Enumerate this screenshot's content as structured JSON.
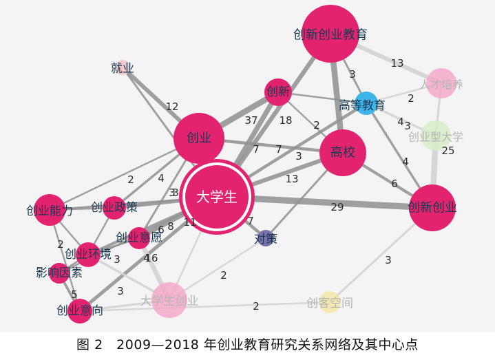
{
  "caption": "图 2　2009—2018 年创业教育研究关系网络及其中心点",
  "nodes": [
    {
      "id": "n0",
      "label": "大学生",
      "color": "#e4236f",
      "emphasis": "center"
    },
    {
      "id": "n1",
      "label": "创新创业教育",
      "color": "#e4236f",
      "emphasis": "strong"
    },
    {
      "id": "n2",
      "label": "创业",
      "color": "#e4236f",
      "emphasis": "strong"
    },
    {
      "id": "n3",
      "label": "高校",
      "color": "#e4236f",
      "emphasis": "strong"
    },
    {
      "id": "n4",
      "label": "创新创业",
      "color": "#e4236f",
      "emphasis": "strong"
    },
    {
      "id": "n5",
      "label": "创新",
      "color": "#e4236f",
      "emphasis": "strong"
    },
    {
      "id": "n6",
      "label": "高等教育",
      "color": "#3db4ea",
      "emphasis": "normal"
    },
    {
      "id": "n7",
      "label": "就业",
      "color": "#f6c9cc",
      "emphasis": "normal"
    },
    {
      "id": "n8",
      "label": "人才培养",
      "color": "#f4a8c8",
      "emphasis": "faded"
    },
    {
      "id": "n9",
      "label": "创业型大学",
      "color": "#d6ecc6",
      "emphasis": "faded"
    },
    {
      "id": "n10",
      "label": "创业能力",
      "color": "#e4236f",
      "emphasis": "normal"
    },
    {
      "id": "n11",
      "label": "创业政策",
      "color": "#e4236f",
      "emphasis": "normal"
    },
    {
      "id": "n12",
      "label": "创业意愿",
      "color": "#e4236f",
      "emphasis": "normal"
    },
    {
      "id": "n13",
      "label": "创业环境",
      "color": "#e4236f",
      "emphasis": "normal"
    },
    {
      "id": "n14",
      "label": "影响因素",
      "color": "#e4236f",
      "emphasis": "normal"
    },
    {
      "id": "n15",
      "label": "创业意向",
      "color": "#e4236f",
      "emphasis": "normal"
    },
    {
      "id": "n16",
      "label": "对策",
      "color": "#7b6fae",
      "emphasis": "normal"
    },
    {
      "id": "n17",
      "label": "大学生创业",
      "color": "#f4a8c8",
      "emphasis": "faded"
    },
    {
      "id": "n18",
      "label": "创客空间",
      "color": "#f2e8a6",
      "emphasis": "faded"
    }
  ],
  "edges": [
    {
      "from": "n0",
      "to": "n2",
      "label": "37",
      "weight": 37
    },
    {
      "from": "n0",
      "to": "n5",
      "label": "18",
      "weight": 18
    },
    {
      "from": "n0",
      "to": "n1",
      "label": "",
      "weight": 14
    },
    {
      "from": "n0",
      "to": "n3",
      "label": "13",
      "weight": 13
    },
    {
      "from": "n0",
      "to": "n4",
      "label": "29",
      "weight": 29
    },
    {
      "from": "n0",
      "to": "n6",
      "label": "7",
      "weight": 7
    },
    {
      "from": "n0",
      "to": "n16",
      "label": "7",
      "weight": 7
    },
    {
      "from": "n0",
      "to": "n12",
      "label": "11",
      "weight": 11
    },
    {
      "from": "n0",
      "to": "n15",
      "label": "",
      "weight": 9
    },
    {
      "from": "n0",
      "to": "n11",
      "label": "8",
      "weight": 8
    },
    {
      "from": "n0",
      "to": "n10",
      "label": "3",
      "weight": 3
    },
    {
      "from": "n0",
      "to": "n13",
      "label": "6",
      "weight": 6
    },
    {
      "from": "n0",
      "to": "n7",
      "label": "",
      "weight": 3
    },
    {
      "from": "n0",
      "to": "n17",
      "label": "",
      "weight": 2
    },
    {
      "from": "n0",
      "to": "n14",
      "label": "",
      "weight": 2
    },
    {
      "from": "n2",
      "to": "n5",
      "label": "",
      "weight": 25
    },
    {
      "from": "n2",
      "to": "n7",
      "label": "12",
      "weight": 12
    },
    {
      "from": "n2",
      "to": "n3",
      "label": "7",
      "weight": 7
    },
    {
      "from": "n2",
      "to": "n10",
      "label": "2",
      "weight": 2
    },
    {
      "from": "n2",
      "to": "n11",
      "label": "4",
      "weight": 4
    },
    {
      "from": "n2",
      "to": "n12",
      "label": "3",
      "weight": 3
    },
    {
      "from": "n1",
      "to": "n3",
      "label": "",
      "weight": 25
    },
    {
      "from": "n1",
      "to": "n6",
      "label": "3",
      "weight": 3
    },
    {
      "from": "n1",
      "to": "n8",
      "label": "13",
      "weight": 13
    },
    {
      "from": "n5",
      "to": "n6",
      "label": "",
      "weight": 2
    },
    {
      "from": "n5",
      "to": "n3",
      "label": "2",
      "weight": 2
    },
    {
      "from": "n6",
      "to": "n8",
      "label": "2",
      "weight": 2
    },
    {
      "from": "n6",
      "to": "n9",
      "label": "4",
      "weight": 4
    },
    {
      "from": "n6",
      "to": "n4",
      "label": "4",
      "weight": 4
    },
    {
      "from": "n8",
      "to": "n9",
      "label": "3",
      "weight": 3
    },
    {
      "from": "n9",
      "to": "n4",
      "label": "25",
      "weight": 25
    },
    {
      "from": "n3",
      "to": "n4",
      "label": "6",
      "weight": 6
    },
    {
      "from": "n3",
      "to": "n16",
      "label": "3",
      "weight": 3
    },
    {
      "from": "n4",
      "to": "n18",
      "label": "3",
      "weight": 3
    },
    {
      "from": "n16",
      "to": "n17",
      "label": "2",
      "weight": 2
    },
    {
      "from": "n12",
      "to": "n17",
      "label": "16",
      "weight": 16
    },
    {
      "from": "n13",
      "to": "n17",
      "label": "4",
      "weight": 4
    },
    {
      "from": "n13",
      "to": "n14",
      "label": "3",
      "weight": 3
    },
    {
      "from": "n10",
      "to": "n13",
      "label": "2",
      "weight": 2
    },
    {
      "from": "n10",
      "to": "n11",
      "label": "",
      "weight": 2
    },
    {
      "from": "n10",
      "to": "n15",
      "label": "",
      "weight": 2
    },
    {
      "from": "n11",
      "to": "n13",
      "label": "",
      "weight": 2
    },
    {
      "from": "n14",
      "to": "n15",
      "label": "5",
      "weight": 5
    },
    {
      "from": "n15",
      "to": "n17",
      "label": "3",
      "weight": 3
    },
    {
      "from": "n12",
      "to": "n13",
      "label": "",
      "weight": 3
    },
    {
      "from": "n15",
      "to": "n18",
      "label": "2",
      "weight": 2
    }
  ]
}
